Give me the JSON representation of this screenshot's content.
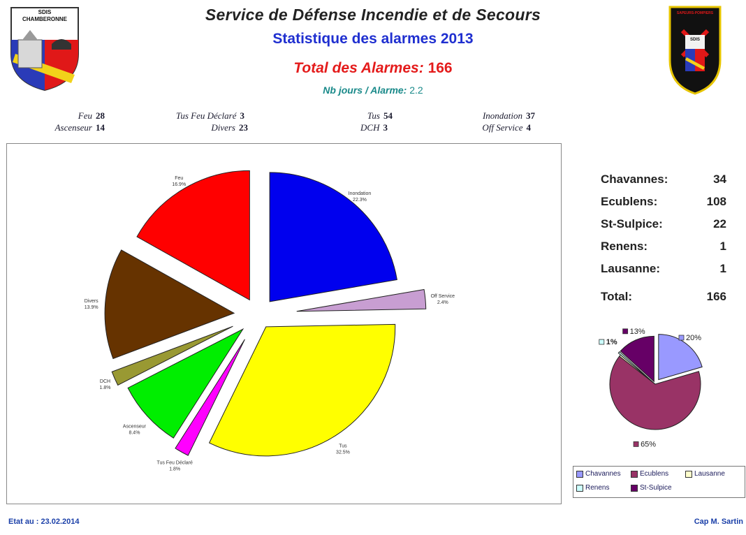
{
  "header": {
    "title": "Service de Défense Incendie et de Secours",
    "subtitle": "Statistique des alarmes 2013",
    "total_label": "Total des Alarmes:",
    "total_value": "166",
    "nbjours_label": "Nb jours / Alarme:",
    "nbjours_value": "2.2"
  },
  "logo_left": {
    "line1": "SDIS",
    "line2": "CHAMBERONNE"
  },
  "logo_right": {
    "banner": "SAPEURS-POMPIERS",
    "text": "SDIS"
  },
  "categories_row": [
    {
      "name": "Feu",
      "value": "28"
    },
    {
      "name": "Tus Feu Déclaré",
      "value": "3"
    },
    {
      "name": "Tus",
      "value": "54"
    },
    {
      "name": "Inondation",
      "value": "37"
    },
    {
      "name": "Ascenseur",
      "value": "14"
    },
    {
      "name": "Divers",
      "value": "23"
    },
    {
      "name": "DCH",
      "value": "3"
    },
    {
      "name": "Off Service",
      "value": "4"
    }
  ],
  "towns": [
    {
      "name": "Chavannes:",
      "value": "34"
    },
    {
      "name": "Ecublens:",
      "value": "108"
    },
    {
      "name": "St-Sulpice:",
      "value": "22"
    },
    {
      "name": "Renens:",
      "value": "1"
    },
    {
      "name": "Lausanne:",
      "value": "1"
    }
  ],
  "towns_total": {
    "name": "Total:",
    "value": "166"
  },
  "footer": {
    "left": "Etat au : 23.02.2014",
    "right": "Cap M. Sartin"
  },
  "chart_data": [
    {
      "type": "pie",
      "categories": [
        "Inondation",
        "Off Service",
        "Tus",
        "Tus Feu Déclaré",
        "Ascenseur",
        "DCH",
        "Divers",
        "Feu"
      ],
      "values": [
        37,
        4,
        54,
        3,
        14,
        3,
        23,
        28
      ],
      "labels": [
        "22.3%",
        "2.4%",
        "32.5%",
        "1.8%",
        "8.4%",
        "1.8%",
        "13.9%",
        "16.9%"
      ],
      "colors": [
        "#0000ee",
        "#c89ed2",
        "#ffff00",
        "#ff00ff",
        "#00ee00",
        "#999933",
        "#663300",
        "#ff0000"
      ]
    },
    {
      "type": "pie",
      "categories": [
        "Chavannes",
        "Ecublens",
        "Lausanne",
        "Renens",
        "St-Sulpice"
      ],
      "labels": [
        "20%",
        "65%",
        "",
        "1%",
        "13%"
      ],
      "values": [
        34,
        108,
        1,
        1,
        22
      ],
      "colors": [
        "#9999ff",
        "#993366",
        "#ffffcc",
        "#ccffff",
        "#660066"
      ],
      "legend": [
        "Chavannes",
        "Ecublens",
        "Lausanne",
        "Renens",
        "St-Sulpice"
      ]
    }
  ]
}
